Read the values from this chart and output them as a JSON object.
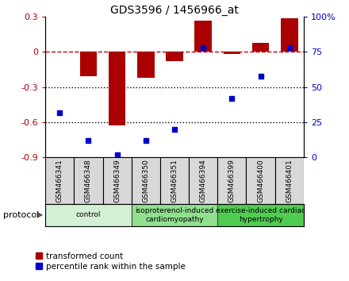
{
  "title": "GDS3596 / 1456966_at",
  "samples": [
    "GSM466341",
    "GSM466348",
    "GSM466349",
    "GSM466350",
    "GSM466351",
    "GSM466394",
    "GSM466399",
    "GSM466400",
    "GSM466401"
  ],
  "red_values": [
    0.0,
    -0.21,
    -0.63,
    -0.22,
    -0.08,
    0.27,
    -0.02,
    0.08,
    0.29
  ],
  "blue_percentiles": [
    32,
    12,
    2,
    12,
    20,
    78,
    42,
    58,
    78
  ],
  "ylim_left": [
    -0.9,
    0.3
  ],
  "ylim_right": [
    0,
    100
  ],
  "yticks_left": [
    -0.9,
    -0.6,
    -0.3,
    0.0,
    0.3
  ],
  "ytick_labels_left": [
    "-0.9",
    "-0.6",
    "-0.3",
    "0",
    "0.3"
  ],
  "ytick_labels_right": [
    "0",
    "25",
    "50",
    "75",
    "100%"
  ],
  "yticks_right": [
    0,
    25,
    50,
    75,
    100
  ],
  "groups": [
    {
      "label": "control",
      "start": 0,
      "end": 3,
      "color": "#d4f0d4"
    },
    {
      "label": "isoproterenol-induced\ncardiomyopathy",
      "start": 3,
      "end": 6,
      "color": "#90e090"
    },
    {
      "label": "exercise-induced cardiac\nhypertrophy",
      "start": 6,
      "end": 9,
      "color": "#50cc50"
    }
  ],
  "red_color": "#aa0000",
  "blue_color": "#0000cc",
  "dashed_line_color": "#cc0000",
  "dotted_line_color": "#000000",
  "bar_width": 0.6,
  "sample_box_color": "#d8d8d8",
  "bg_color": "#ffffff"
}
